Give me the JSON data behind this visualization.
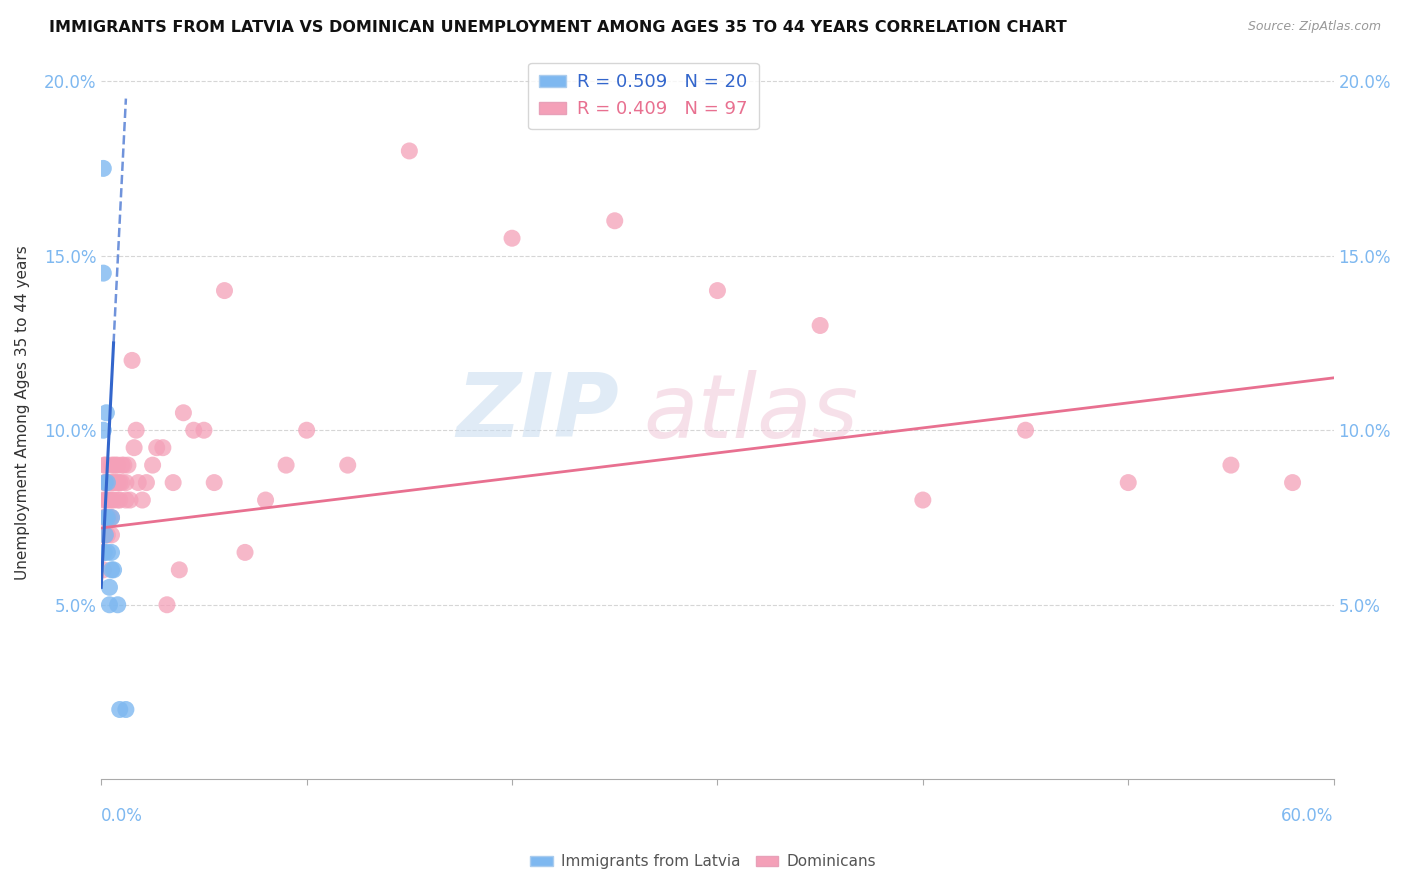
{
  "title": "IMMIGRANTS FROM LATVIA VS DOMINICAN UNEMPLOYMENT AMONG AGES 35 TO 44 YEARS CORRELATION CHART",
  "source": "Source: ZipAtlas.com",
  "ylabel": "Unemployment Among Ages 35 to 44 years",
  "xlim": [
    0.0,
    0.6
  ],
  "ylim": [
    0.0,
    0.21
  ],
  "yticks": [
    0.05,
    0.1,
    0.15,
    0.2
  ],
  "ytick_labels": [
    "5.0%",
    "10.0%",
    "15.0%",
    "20.0%"
  ],
  "xticks": [
    0.0,
    0.1,
    0.2,
    0.3,
    0.4,
    0.5,
    0.6
  ],
  "blue_color": "#7EB8F0",
  "pink_color": "#F4A0B8",
  "blue_line_color": "#3366CC",
  "pink_line_color": "#E87090",
  "axis_color": "#7EB8F0",
  "grid_color": "#CCCCCC",
  "blue_scatter_x": [
    0.001,
    0.001,
    0.001,
    0.0015,
    0.002,
    0.002,
    0.002,
    0.0025,
    0.003,
    0.003,
    0.003,
    0.004,
    0.004,
    0.005,
    0.005,
    0.005,
    0.006,
    0.008,
    0.009,
    0.012
  ],
  "blue_scatter_y": [
    0.175,
    0.145,
    0.1,
    0.065,
    0.07,
    0.075,
    0.085,
    0.105,
    0.065,
    0.075,
    0.085,
    0.05,
    0.055,
    0.065,
    0.075,
    0.06,
    0.06,
    0.05,
    0.02,
    0.02
  ],
  "pink_scatter_x": [
    0.001,
    0.001,
    0.001,
    0.001,
    0.001,
    0.0015,
    0.0015,
    0.002,
    0.002,
    0.002,
    0.002,
    0.002,
    0.003,
    0.003,
    0.003,
    0.003,
    0.004,
    0.004,
    0.004,
    0.005,
    0.005,
    0.005,
    0.005,
    0.005,
    0.006,
    0.006,
    0.006,
    0.007,
    0.007,
    0.008,
    0.008,
    0.008,
    0.009,
    0.009,
    0.01,
    0.01,
    0.011,
    0.012,
    0.012,
    0.013,
    0.014,
    0.015,
    0.016,
    0.017,
    0.018,
    0.02,
    0.022,
    0.025,
    0.027,
    0.03,
    0.032,
    0.035,
    0.038,
    0.04,
    0.045,
    0.05,
    0.055,
    0.06,
    0.07,
    0.08,
    0.09,
    0.1,
    0.12,
    0.15,
    0.2,
    0.25,
    0.3,
    0.35,
    0.4,
    0.45,
    0.5,
    0.55,
    0.58
  ],
  "pink_scatter_y": [
    0.08,
    0.075,
    0.07,
    0.065,
    0.06,
    0.09,
    0.085,
    0.09,
    0.085,
    0.08,
    0.075,
    0.07,
    0.085,
    0.08,
    0.075,
    0.07,
    0.085,
    0.08,
    0.075,
    0.09,
    0.085,
    0.08,
    0.075,
    0.07,
    0.09,
    0.085,
    0.08,
    0.09,
    0.085,
    0.09,
    0.085,
    0.08,
    0.085,
    0.08,
    0.09,
    0.085,
    0.09,
    0.085,
    0.08,
    0.09,
    0.08,
    0.12,
    0.095,
    0.1,
    0.085,
    0.08,
    0.085,
    0.09,
    0.095,
    0.095,
    0.05,
    0.085,
    0.06,
    0.105,
    0.1,
    0.1,
    0.085,
    0.14,
    0.065,
    0.08,
    0.09,
    0.1,
    0.09,
    0.18,
    0.155,
    0.16,
    0.14,
    0.13,
    0.08,
    0.1,
    0.085,
    0.09,
    0.085
  ],
  "pink_line_x0": 0.0,
  "pink_line_y0": 0.072,
  "pink_line_x1": 0.6,
  "pink_line_y1": 0.115,
  "blue_line_solid_x0": 0.0,
  "blue_line_solid_y0": 0.055,
  "blue_line_solid_x1": 0.006,
  "blue_line_solid_y1": 0.125,
  "blue_line_dash_x0": 0.006,
  "blue_line_dash_y0": 0.125,
  "blue_line_dash_x1": 0.012,
  "blue_line_dash_y1": 0.195
}
